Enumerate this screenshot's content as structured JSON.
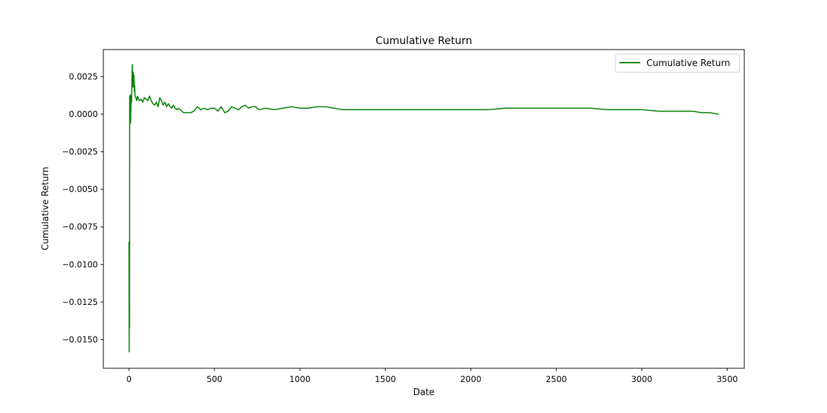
{
  "chart_data": {
    "type": "line",
    "title": "Cumulative Return",
    "xlabel": "Date",
    "ylabel": "Cumulative Return",
    "xlim": [
      -150,
      3600
    ],
    "ylim": [
      -0.0169,
      0.0043
    ],
    "x_ticks": [
      0,
      500,
      1000,
      1500,
      2000,
      2500,
      3000,
      3500
    ],
    "x_tick_labels": [
      "0",
      "500",
      "1000",
      "1500",
      "2000",
      "2500",
      "3000",
      "3500"
    ],
    "y_ticks": [
      0.0025,
      0.0,
      -0.0025,
      -0.005,
      -0.0075,
      -0.01,
      -0.0125,
      -0.015
    ],
    "y_tick_labels": [
      "0.0025",
      "0.0000",
      "−0.0025",
      "−0.0050",
      "−0.0075",
      "−0.0100",
      "−0.0125",
      "−0.0150"
    ],
    "grid": false,
    "legend": {
      "placement": "top-right",
      "entries": [
        "Cumulative Return"
      ]
    },
    "series": [
      {
        "name": "Cumulative Return",
        "color": "#008000",
        "x": [
          0,
          1,
          2,
          3,
          4,
          5,
          7,
          9,
          11,
          13,
          15,
          17,
          19,
          21,
          23,
          25,
          27,
          29,
          31,
          33,
          35,
          40,
          45,
          50,
          60,
          70,
          80,
          90,
          100,
          110,
          120,
          130,
          140,
          150,
          160,
          170,
          180,
          190,
          200,
          210,
          220,
          230,
          240,
          250,
          260,
          270,
          280,
          290,
          300,
          320,
          340,
          360,
          380,
          400,
          420,
          440,
          460,
          480,
          500,
          520,
          540,
          560,
          580,
          600,
          620,
          640,
          660,
          680,
          700,
          720,
          740,
          760,
          800,
          850,
          900,
          950,
          1000,
          1050,
          1100,
          1150,
          1200,
          1250,
          1300,
          1400,
          1500,
          1600,
          1700,
          1800,
          1900,
          2000,
          2100,
          2200,
          2300,
          2400,
          2500,
          2600,
          2700,
          2800,
          2900,
          3000,
          3100,
          3200,
          3250,
          3300,
          3350,
          3400,
          3450
        ],
        "y": [
          -0.0085,
          -0.0158,
          -0.0105,
          -0.0142,
          0.0012,
          0.0005,
          0.0013,
          -0.0006,
          0.0004,
          0.0012,
          0.0008,
          0.0022,
          0.0033,
          0.0024,
          0.0018,
          0.0028,
          0.0021,
          0.0026,
          0.0015,
          0.0019,
          0.0012,
          0.0011,
          0.0009,
          0.0012,
          0.0009,
          0.001,
          0.0008,
          0.0011,
          0.001,
          0.0009,
          0.0012,
          0.0009,
          0.0007,
          0.0006,
          0.0008,
          0.0005,
          0.0011,
          0.0009,
          0.0006,
          0.0008,
          0.0005,
          0.0007,
          0.0005,
          0.0004,
          0.0006,
          0.0004,
          0.0003,
          0.0004,
          0.0003,
          0.0001,
          0.0001,
          0.0001,
          0.0002,
          0.0005,
          0.0003,
          0.0004,
          0.0003,
          0.0004,
          0.0004,
          0.0002,
          0.0005,
          0.0001,
          0.0002,
          0.0005,
          0.0004,
          0.0003,
          0.0005,
          0.0006,
          0.0004,
          0.0005,
          0.0005,
          0.0003,
          0.0004,
          0.0003,
          0.0004,
          0.0005,
          0.0004,
          0.0004,
          0.0005,
          0.0005,
          0.0004,
          0.0003,
          0.0003,
          0.0003,
          0.0003,
          0.0003,
          0.0003,
          0.0003,
          0.0003,
          0.0003,
          0.0003,
          0.0004,
          0.0004,
          0.0004,
          0.0004,
          0.0004,
          0.0004,
          0.0003,
          0.0003,
          0.0003,
          0.0002,
          0.0002,
          0.0002,
          0.0002,
          0.0001,
          0.0001,
          0.0
        ]
      }
    ]
  }
}
